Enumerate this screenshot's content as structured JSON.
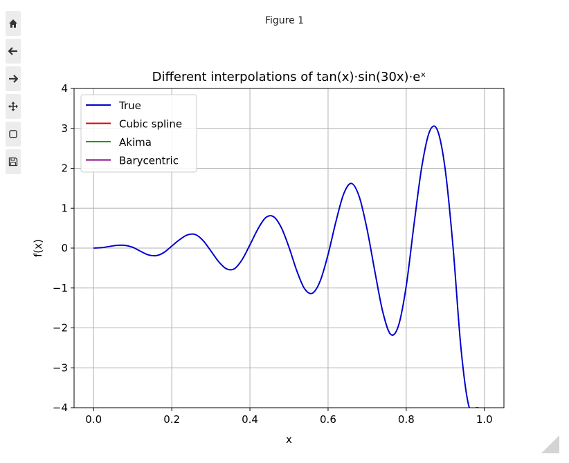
{
  "window": {
    "title": "Figure 1"
  },
  "toolbar": {
    "buttons": [
      {
        "name": "home",
        "icon": "home-icon"
      },
      {
        "name": "back",
        "icon": "arrow-left-icon"
      },
      {
        "name": "forward",
        "icon": "arrow-right-icon"
      },
      {
        "name": "pan",
        "icon": "move-icon"
      },
      {
        "name": "zoom",
        "icon": "zoom-rect-icon"
      },
      {
        "name": "save",
        "icon": "save-icon"
      }
    ]
  },
  "chart_data": {
    "type": "line",
    "title": "Different interpolations of tan(x)·sin(30x)·eˣ",
    "xlabel": "x",
    "ylabel": "f(x)",
    "xlim": [
      -0.05,
      1.05
    ],
    "ylim": [
      -4,
      4
    ],
    "xticks": [
      "0.0",
      "0.2",
      "0.4",
      "0.6",
      "0.8",
      "1.0"
    ],
    "xtick_values": [
      0.0,
      0.2,
      0.4,
      0.6,
      0.8,
      1.0
    ],
    "yticks": [
      "−4",
      "−3",
      "−2",
      "−1",
      "0",
      "1",
      "2",
      "3",
      "4"
    ],
    "ytick_values": [
      -4,
      -3,
      -2,
      -1,
      0,
      1,
      2,
      3,
      4
    ],
    "grid": true,
    "legend_position": "upper-left",
    "series": [
      {
        "name": "True",
        "color": "#0000cc"
      },
      {
        "name": "Cubic spline",
        "color": "#e00000"
      },
      {
        "name": "Akima",
        "color": "#1a9a1a"
      },
      {
        "name": "Barycentric",
        "color": "#800080"
      }
    ],
    "x": [
      0.0,
      0.02,
      0.04,
      0.06,
      0.08,
      0.1,
      0.12,
      0.14,
      0.16,
      0.18,
      0.2,
      0.22,
      0.24,
      0.26,
      0.28,
      0.3,
      0.32,
      0.34,
      0.36,
      0.38,
      0.4,
      0.42,
      0.44,
      0.46,
      0.48,
      0.5,
      0.52,
      0.54,
      0.56,
      0.58,
      0.6,
      0.62,
      0.64,
      0.66,
      0.68,
      0.7,
      0.72,
      0.74,
      0.76,
      0.78,
      0.8,
      0.82,
      0.84,
      0.86,
      0.88,
      0.9,
      0.92,
      0.94,
      0.96,
      0.98,
      0.985
    ],
    "y": [
      0.0,
      0.01,
      0.04,
      0.07,
      0.07,
      0.02,
      -0.08,
      -0.17,
      -0.19,
      -0.11,
      0.05,
      0.21,
      0.33,
      0.34,
      0.19,
      -0.07,
      -0.34,
      -0.52,
      -0.52,
      -0.29,
      0.08,
      0.47,
      0.76,
      0.79,
      0.52,
      0.02,
      -0.57,
      -1.02,
      -1.13,
      -0.82,
      -0.16,
      0.66,
      1.36,
      1.62,
      1.28,
      0.46,
      -0.6,
      -1.6,
      -2.16,
      -1.95,
      -0.95,
      0.6,
      2.05,
      2.93,
      2.95,
      1.95,
      0.0,
      -2.5,
      -3.95,
      -4.0,
      -4.0
    ]
  }
}
